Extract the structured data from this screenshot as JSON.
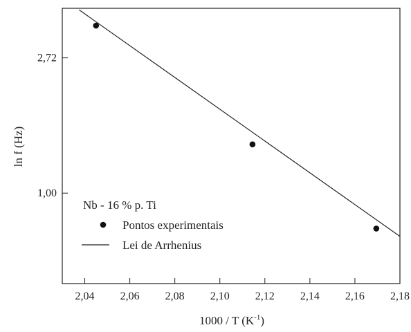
{
  "chart_data": {
    "type": "scatter",
    "xlabel_main": "1000 / T (K",
    "xlabel_sup": "-1",
    "xlabel_end": ")",
    "ylabel": "ln f (Hz)",
    "xlim": [
      2.03,
      2.18
    ],
    "ylim": [
      -0.15,
      3.35
    ],
    "x_ticks": [
      2.04,
      2.06,
      2.08,
      2.1,
      2.12,
      2.14,
      2.16,
      2.18
    ],
    "x_tick_labels": [
      "2,04",
      "2,06",
      "2,08",
      "2,10",
      "2,12",
      "2,14",
      "2,16",
      "2,18"
    ],
    "y_ticks": [
      1.0,
      2.72
    ],
    "y_tick_labels": [
      "1,00",
      "2,72"
    ],
    "grid": false,
    "legend_position": "bottom-left",
    "annotation": "Nb - 16 % p. Ti",
    "series": [
      {
        "name": "Pontos experimentais",
        "kind": "scatter",
        "x": [
          2.045,
          2.1145,
          2.1695
        ],
        "y": [
          3.13,
          1.62,
          0.55
        ],
        "color": "#111111"
      },
      {
        "name": "Lei de Arrhenius",
        "kind": "line",
        "x": [
          2.0375,
          2.18
        ],
        "y": [
          3.33,
          0.45
        ],
        "color": "#222222"
      }
    ]
  }
}
